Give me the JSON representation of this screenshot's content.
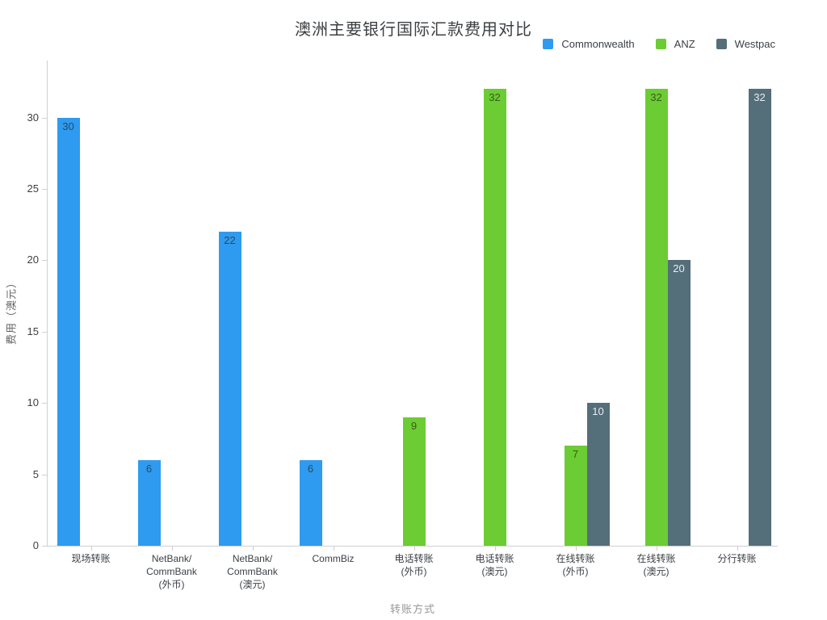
{
  "chart_data": {
    "type": "bar",
    "title": "澳洲主要银行国际汇款费用对比",
    "xlabel": "转账方式",
    "ylabel": "费用（澳元）",
    "ylim": [
      0,
      34
    ],
    "yticks": [
      0,
      5,
      10,
      15,
      20,
      25,
      30
    ],
    "grid": false,
    "legend_position": "top-right",
    "background": "#ffffff",
    "categories": [
      "现场转账",
      "NetBank/\nCommBank\n(外币)",
      "NetBank/\nCommBank\n(澳元)",
      "CommBiz",
      "电话转账\n(外币)",
      "电话转账\n(澳元)",
      "在线转账\n(外币)",
      "在线转账\n(澳元)",
      "分行转账"
    ],
    "series": [
      {
        "name": "Commonwealth",
        "color": "#2e9bf0",
        "label_color": "#2c4a5e",
        "values": [
          30,
          6,
          22,
          6,
          null,
          null,
          null,
          null,
          null
        ]
      },
      {
        "name": "ANZ",
        "color": "#6ccc33",
        "label_color": "#3a5a1d",
        "values": [
          null,
          null,
          null,
          null,
          9,
          32,
          7,
          32,
          null
        ]
      },
      {
        "name": "Westpac",
        "color": "#546e7a",
        "label_color": "#e8eef1",
        "values": [
          null,
          null,
          null,
          null,
          null,
          null,
          10,
          20,
          32
        ]
      }
    ]
  }
}
